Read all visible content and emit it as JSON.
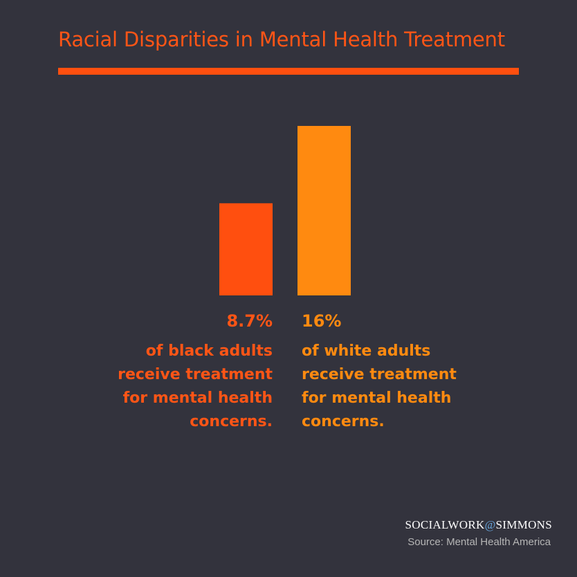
{
  "title": "Racial Disparities in Mental Health Treatment",
  "colors": {
    "background": "#33333d",
    "accent_red": "#ff5516",
    "accent_orange": "#ff8a10",
    "at_sign": "#6aa8e0"
  },
  "chart_data": {
    "type": "bar",
    "categories": [
      "of black adults receive treatment for mental health concerns.",
      "of white adults receive treatment for mental health concerns."
    ],
    "values": [
      8.7,
      16
    ],
    "value_labels": [
      "8.7%",
      "16%"
    ],
    "colors": [
      "#ff4f0f",
      "#ff8a10"
    ],
    "ylim": [
      0,
      16
    ],
    "grid": false,
    "axes_visible": false
  },
  "labels": {
    "left": {
      "pct": "8.7%",
      "lines": [
        "of black adults",
        "receive treatment",
        "for mental health",
        "concerns."
      ]
    },
    "right": {
      "pct": "16%",
      "lines": [
        "of white adults",
        "receive treatment",
        "for mental health",
        "concerns."
      ]
    }
  },
  "footer": {
    "brand_left": "SOCIALWORK",
    "brand_at": "@",
    "brand_right": "SIMMONS",
    "source": "Source: Mental Health America"
  }
}
